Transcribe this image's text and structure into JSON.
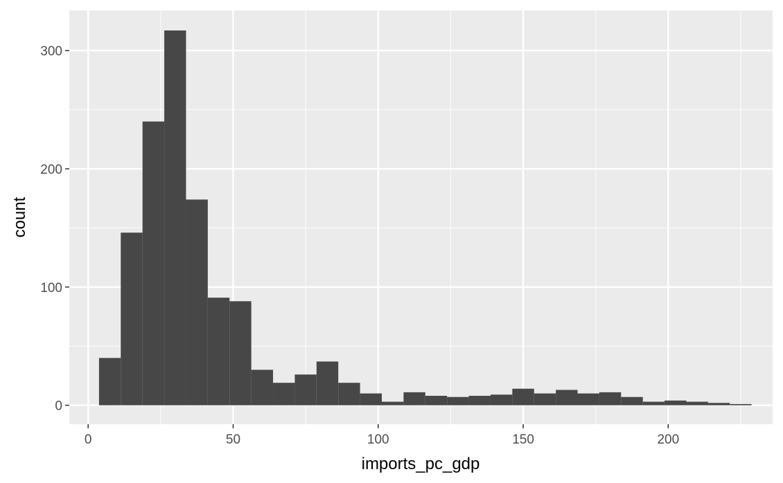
{
  "chart_data": {
    "type": "histogram",
    "title": "",
    "xlabel": "imports_pc_gdp",
    "ylabel": "count",
    "xlim": [
      -6.5,
      236
    ],
    "ylim": [
      -16,
      334
    ],
    "x_ticks": [
      0,
      50,
      100,
      150,
      200
    ],
    "x_tick_labels": [
      "0",
      "50",
      "100",
      "150",
      "200"
    ],
    "y_ticks": [
      0,
      100,
      200,
      300
    ],
    "y_tick_labels": [
      "0",
      "100",
      "200",
      "300"
    ],
    "grid": true,
    "legend": "none",
    "bin_width": 7.5,
    "bin_start": 3.75,
    "counts": [
      40,
      146,
      240,
      317,
      174,
      91,
      88,
      30,
      19,
      26,
      37,
      19,
      10,
      3,
      11,
      8,
      7,
      8,
      9,
      14,
      10,
      13,
      10,
      11,
      7,
      3,
      4,
      3,
      2,
      1
    ],
    "colors": {
      "panel": "#ebebeb",
      "grid_major": "#ffffff",
      "bar": "#474747",
      "tick": "#333333"
    }
  }
}
